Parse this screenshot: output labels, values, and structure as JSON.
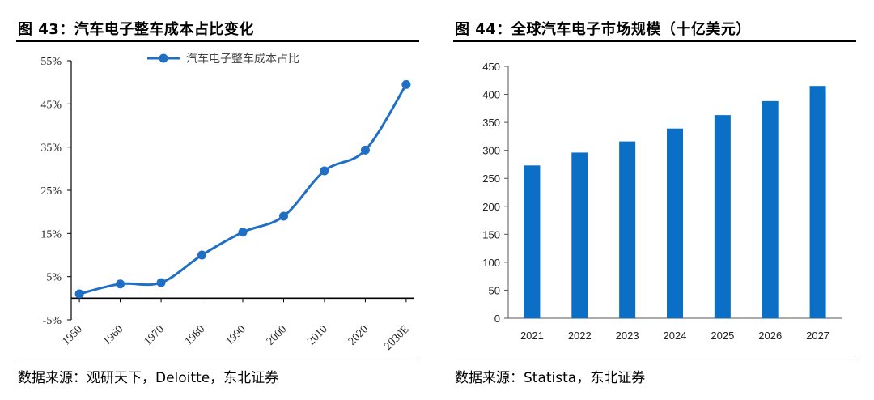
{
  "left": {
    "figure_title": "图 43：汽车电子整车成本占比变化",
    "source": "数据来源：观研天下，Deloitte，东北证券"
  },
  "right": {
    "figure_title": "图 44：全球汽车电子市场规模（十亿美元）",
    "source": "数据来源：Statista，东北证券"
  },
  "chart_data": [
    {
      "type": "line",
      "title": "",
      "categories": [
        "1950",
        "1960",
        "1970",
        "1980",
        "1990",
        "2000",
        "2010",
        "2020",
        "2030E"
      ],
      "series": [
        {
          "name": "汽车电子整车成本占比",
          "values": [
            1,
            3.3,
            3.6,
            10,
            15.3,
            19,
            29.5,
            34.3,
            49.5
          ],
          "color": "#1f6fc4"
        }
      ],
      "yticks": [
        "-5%",
        "5%",
        "15%",
        "25%",
        "35%",
        "45%",
        "55%"
      ],
      "ylim": [
        -5,
        55
      ],
      "xlabel": "",
      "ylabel": "",
      "grid": false,
      "legend": "top"
    },
    {
      "type": "bar",
      "title": "",
      "categories": [
        "2021",
        "2022",
        "2023",
        "2024",
        "2025",
        "2026",
        "2027"
      ],
      "values": [
        273,
        296,
        316,
        339,
        363,
        388,
        415
      ],
      "color": "#0b6fc6",
      "yticks": [
        "0",
        "50",
        "100",
        "150",
        "200",
        "250",
        "300",
        "350",
        "400",
        "450"
      ],
      "ylim": [
        0,
        450
      ],
      "xlabel": "",
      "ylabel": "",
      "grid": false,
      "legend": "none"
    }
  ]
}
